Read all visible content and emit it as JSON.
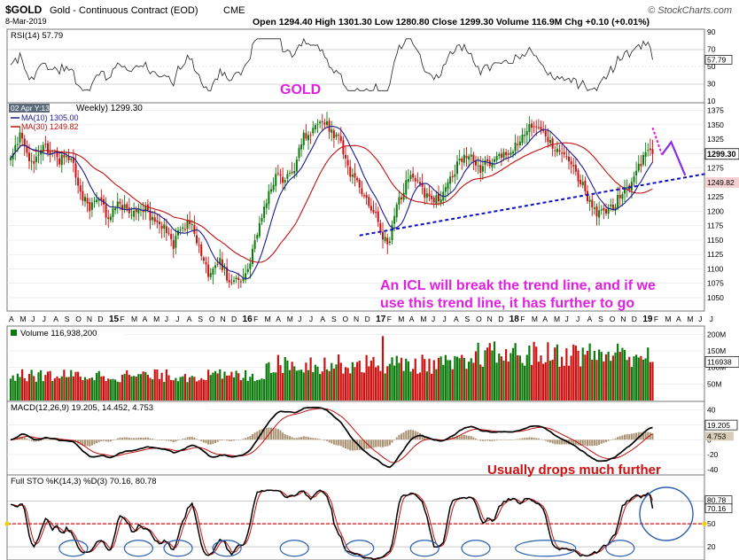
{
  "header": {
    "symbol": "$GOLD",
    "name": "Gold - Continuous Contract (EOD)",
    "exchange": "CME",
    "date": "8-Mar-2019",
    "ohlc": "Open 1294.40  High 1301.30  Low 1280.80  Close 1299.30  Volume 116.9M  Chg +0.10 (+0.01%)",
    "open": 1294.4,
    "high": 1301.3,
    "low": 1280.8,
    "close": 1299.3,
    "volume": "116.9M",
    "chg": "+0.10 (+0.01%)",
    "watermark": "© StockCharts.com"
  },
  "colors": {
    "up": "#0a7a0a",
    "down": "#cc1010",
    "ma10": "#1a1a8c",
    "ma30": "#c01010",
    "annotation": "#e020e0",
    "trend": "#1010c0",
    "purple": "#8a2be2",
    "ellipse": "#2a5fb0",
    "stoRef": "#d01010",
    "stoRefBand": "#f0d000"
  },
  "chart_data": [
    {
      "type": "line",
      "panel": "rsi",
      "label": "RSI(14) 57.79",
      "value": 57.79,
      "ylim": [
        10,
        90
      ],
      "ticks": [
        90,
        70,
        50,
        30,
        10
      ],
      "reference_lines": [
        70,
        30
      ],
      "series": [
        {
          "name": "RSI(14)"
        }
      ]
    },
    {
      "type": "line",
      "panel": "price",
      "title": "GOLD",
      "label_crosshair": "02 Apr Y:137.14",
      "label_period": "Weekly) 1299.30",
      "ylim": [
        1030,
        1385
      ],
      "y_ticks": [
        1375,
        1350,
        1325,
        1300,
        1275,
        1250,
        1225,
        1200,
        1175,
        1150,
        1125,
        1100,
        1075,
        1050
      ],
      "x_ticks": [
        "A",
        "M",
        "J",
        "J",
        "A",
        "S",
        "O",
        "N",
        "D",
        "15",
        "F",
        "M",
        "A",
        "M",
        "J",
        "J",
        "A",
        "S",
        "O",
        "N",
        "D",
        "16",
        "F",
        "M",
        "A",
        "M",
        "J",
        "J",
        "A",
        "S",
        "O",
        "N",
        "D",
        "17",
        "F",
        "M",
        "A",
        "M",
        "J",
        "J",
        "A",
        "S",
        "O",
        "N",
        "D",
        "18",
        "F",
        "M",
        "A",
        "M",
        "J",
        "J",
        "A",
        "S",
        "O",
        "N",
        "D",
        "19",
        "F",
        "M",
        "A",
        "M",
        "J",
        "J"
      ],
      "series": [
        {
          "name": "MA(10) 1305.00",
          "value": 1305.0
        },
        {
          "name": "MA(30) 1249.82",
          "value": 1249.82
        }
      ],
      "right_labels": [
        "1299.30",
        "1249.82"
      ],
      "anchors": [
        [
          0,
          1300
        ],
        [
          5,
          1335
        ],
        [
          9,
          1280
        ],
        [
          14,
          1315
        ],
        [
          20,
          1290
        ],
        [
          26,
          1290
        ],
        [
          30,
          1235
        ],
        [
          34,
          1200
        ],
        [
          38,
          1230
        ],
        [
          42,
          1180
        ],
        [
          45,
          1210
        ],
        [
          50,
          1205
        ],
        [
          54,
          1195
        ],
        [
          58,
          1200
        ],
        [
          62,
          1175
        ],
        [
          66,
          1170
        ],
        [
          70,
          1140
        ],
        [
          74,
          1175
        ],
        [
          78,
          1180
        ],
        [
          82,
          1120
        ],
        [
          86,
          1085
        ],
        [
          90,
          1115
        ],
        [
          94,
          1075
        ],
        [
          98,
          1080
        ],
        [
          102,
          1100
        ],
        [
          106,
          1160
        ],
        [
          110,
          1215
        ],
        [
          114,
          1260
        ],
        [
          118,
          1250
        ],
        [
          122,
          1275
        ],
        [
          126,
          1330
        ],
        [
          130,
          1340
        ],
        [
          134,
          1360
        ],
        [
          138,
          1335
        ],
        [
          142,
          1320
        ],
        [
          146,
          1265
        ],
        [
          150,
          1240
        ],
        [
          154,
          1215
        ],
        [
          158,
          1180
        ],
        [
          162,
          1140
        ],
        [
          166,
          1205
        ],
        [
          170,
          1250
        ],
        [
          174,
          1260
        ],
        [
          178,
          1230
        ],
        [
          182,
          1215
        ],
        [
          186,
          1230
        ],
        [
          190,
          1265
        ],
        [
          194,
          1290
        ],
        [
          198,
          1290
        ],
        [
          202,
          1275
        ],
        [
          206,
          1285
        ],
        [
          210,
          1305
        ],
        [
          214,
          1290
        ],
        [
          218,
          1320
        ],
        [
          222,
          1340
        ],
        [
          226,
          1350
        ],
        [
          230,
          1330
        ],
        [
          234,
          1305
        ],
        [
          238,
          1300
        ],
        [
          242,
          1275
        ],
        [
          246,
          1245
        ],
        [
          250,
          1200
        ],
        [
          254,
          1195
        ],
        [
          258,
          1205
        ],
        [
          262,
          1225
        ],
        [
          266,
          1245
        ],
        [
          270,
          1275
        ],
        [
          274,
          1310
        ],
        [
          276,
          1298
        ]
      ],
      "annotations": {
        "gold_title": "GOLD",
        "note": "An ICL will break the trend line, and if we use this trend line,  it has further to go",
        "trend_from": [
          150,
          1158
        ],
        "trend_to": [
          299,
          1265
        ],
        "purple_path": [
          [
            276,
            1345
          ],
          [
            280,
            1298
          ],
          [
            284,
            1320
          ],
          [
            290,
            1262
          ]
        ]
      }
    },
    {
      "type": "bar",
      "panel": "volume",
      "label": "Volume 116,938,200",
      "value": 116938200,
      "right_label": "116938",
      "ticks": [
        "200M",
        "150M",
        "100M",
        "50M"
      ],
      "ylim": [
        0,
        220
      ],
      "unit": "M"
    },
    {
      "type": "line",
      "panel": "macd",
      "label": "MACD(12,26,9) 19.205, 14.452, 4.753",
      "macd": 19.205,
      "signal": 14.452,
      "histogram": 4.753,
      "ticks": [
        40,
        20,
        0,
        -20,
        -40
      ],
      "right_labels": [
        "19.205",
        "4.753"
      ],
      "ylim": [
        -45,
        48
      ],
      "series": [
        {
          "name": "MACD"
        },
        {
          "name": "Signal"
        },
        {
          "name": "Histogram"
        }
      ]
    },
    {
      "type": "line",
      "panel": "stochastic",
      "label": "Full STO %K(14,3) %D(3) 70.16, 80.78",
      "k": 70.16,
      "d": 80.78,
      "ticks": [
        80,
        50,
        20
      ],
      "right_labels": [
        "80.78",
        "70.16"
      ],
      "ylim": [
        5,
        100
      ],
      "reference_line": 50,
      "note": "Usually drops much further",
      "lows_circled": [
        27,
        55,
        72,
        93,
        122,
        150,
        178,
        200,
        230,
        262
      ]
    }
  ]
}
